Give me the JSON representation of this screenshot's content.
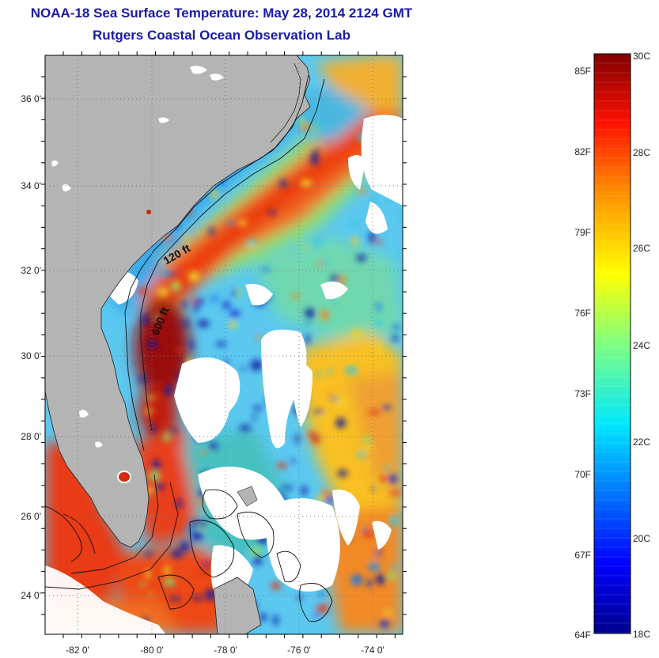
{
  "header": {
    "title": "NOAA-18 Sea Surface Temperature:  May 28, 2014 2124 GMT",
    "subtitle": "Rutgers Coastal Ocean Observation Lab"
  },
  "map": {
    "lon_ticks": [
      "-82 0'",
      "-80 0'",
      "-78 0'",
      "-76 0'",
      "-74 0'"
    ],
    "lat_ticks": [
      "36 0'",
      "34 0'",
      "32 0'",
      "30 0'",
      "28 0'",
      "26 0'",
      "24 0'"
    ],
    "lon_range": [
      -83.0,
      -73.0
    ],
    "lat_range": [
      23.0,
      37.2
    ],
    "isobath_labels": [
      "120 ft",
      "600 ft"
    ],
    "colors": {
      "land": "#b4b4b4",
      "cloud": "#ffffff",
      "frame": "#000000"
    }
  },
  "colorbar": {
    "fahrenheit_labels": [
      "85F",
      "82F",
      "79F",
      "76F",
      "73F",
      "70F",
      "67F",
      "64F"
    ],
    "celsius_labels": [
      "30C",
      "28C",
      "26C",
      "24C",
      "22C",
      "20C",
      "18C"
    ],
    "celsius_range": [
      18,
      30
    ],
    "colormap": "jet"
  }
}
